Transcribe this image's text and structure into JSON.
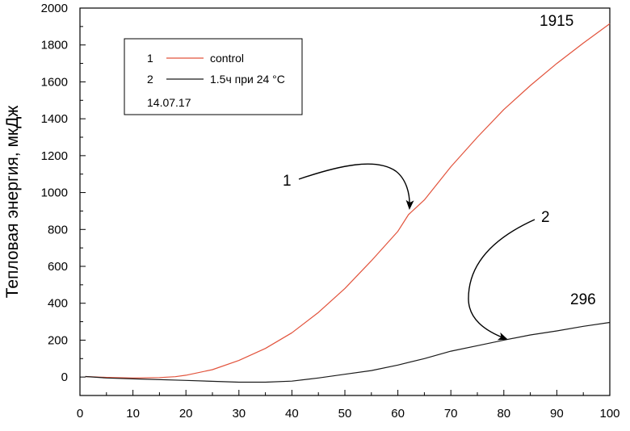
{
  "chart_data": {
    "type": "line",
    "title": "",
    "xlabel": "",
    "ylabel": "Тепловая энергия,  мкДж",
    "xlim": [
      0,
      100
    ],
    "ylim": [
      -100,
      2000
    ],
    "x_ticks": [
      "0",
      "10",
      "20",
      "30",
      "40",
      "50",
      "60",
      "70",
      "80",
      "90",
      "100"
    ],
    "y_ticks": [
      "0",
      "200",
      "400",
      "600",
      "800",
      "1000",
      "1200",
      "1400",
      "1600",
      "1800",
      "2000"
    ],
    "grid": false,
    "legend": {
      "placement": "top-left",
      "entries": [
        {
          "index": "1",
          "label": "control"
        },
        {
          "index": "2",
          "label": "1.5ч при 24 °C"
        }
      ],
      "note": "14.07.17"
    },
    "series": [
      {
        "id": "1",
        "label": "control",
        "color": "#e2533c",
        "points": [
          [
            1,
            3
          ],
          [
            5,
            -2
          ],
          [
            10,
            -5
          ],
          [
            15,
            -3
          ],
          [
            18,
            2
          ],
          [
            20,
            10
          ],
          [
            25,
            40
          ],
          [
            30,
            90
          ],
          [
            35,
            155
          ],
          [
            40,
            240
          ],
          [
            45,
            350
          ],
          [
            50,
            480
          ],
          [
            55,
            630
          ],
          [
            60,
            790
          ],
          [
            62,
            880
          ],
          [
            65,
            960
          ],
          [
            70,
            1140
          ],
          [
            75,
            1300
          ],
          [
            80,
            1450
          ],
          [
            85,
            1580
          ],
          [
            90,
            1700
          ],
          [
            95,
            1810
          ],
          [
            100,
            1915
          ]
        ]
      },
      {
        "id": "2",
        "label": "1.5ч при 24 °C",
        "color": "#1a1a1a",
        "points": [
          [
            1,
            3
          ],
          [
            5,
            -5
          ],
          [
            10,
            -10
          ],
          [
            20,
            -18
          ],
          [
            30,
            -28
          ],
          [
            35,
            -28
          ],
          [
            40,
            -22
          ],
          [
            45,
            -5
          ],
          [
            50,
            15
          ],
          [
            55,
            35
          ],
          [
            60,
            65
          ],
          [
            65,
            100
          ],
          [
            70,
            140
          ],
          [
            75,
            170
          ],
          [
            80,
            200
          ],
          [
            85,
            228
          ],
          [
            90,
            250
          ],
          [
            95,
            275
          ],
          [
            100,
            296
          ]
        ]
      }
    ],
    "annotations": [
      {
        "text": "1915",
        "target_series": "1"
      },
      {
        "text": "296",
        "target_series": "2"
      },
      {
        "text": "1",
        "target_series": "1"
      },
      {
        "text": "2",
        "target_series": "2"
      }
    ]
  }
}
